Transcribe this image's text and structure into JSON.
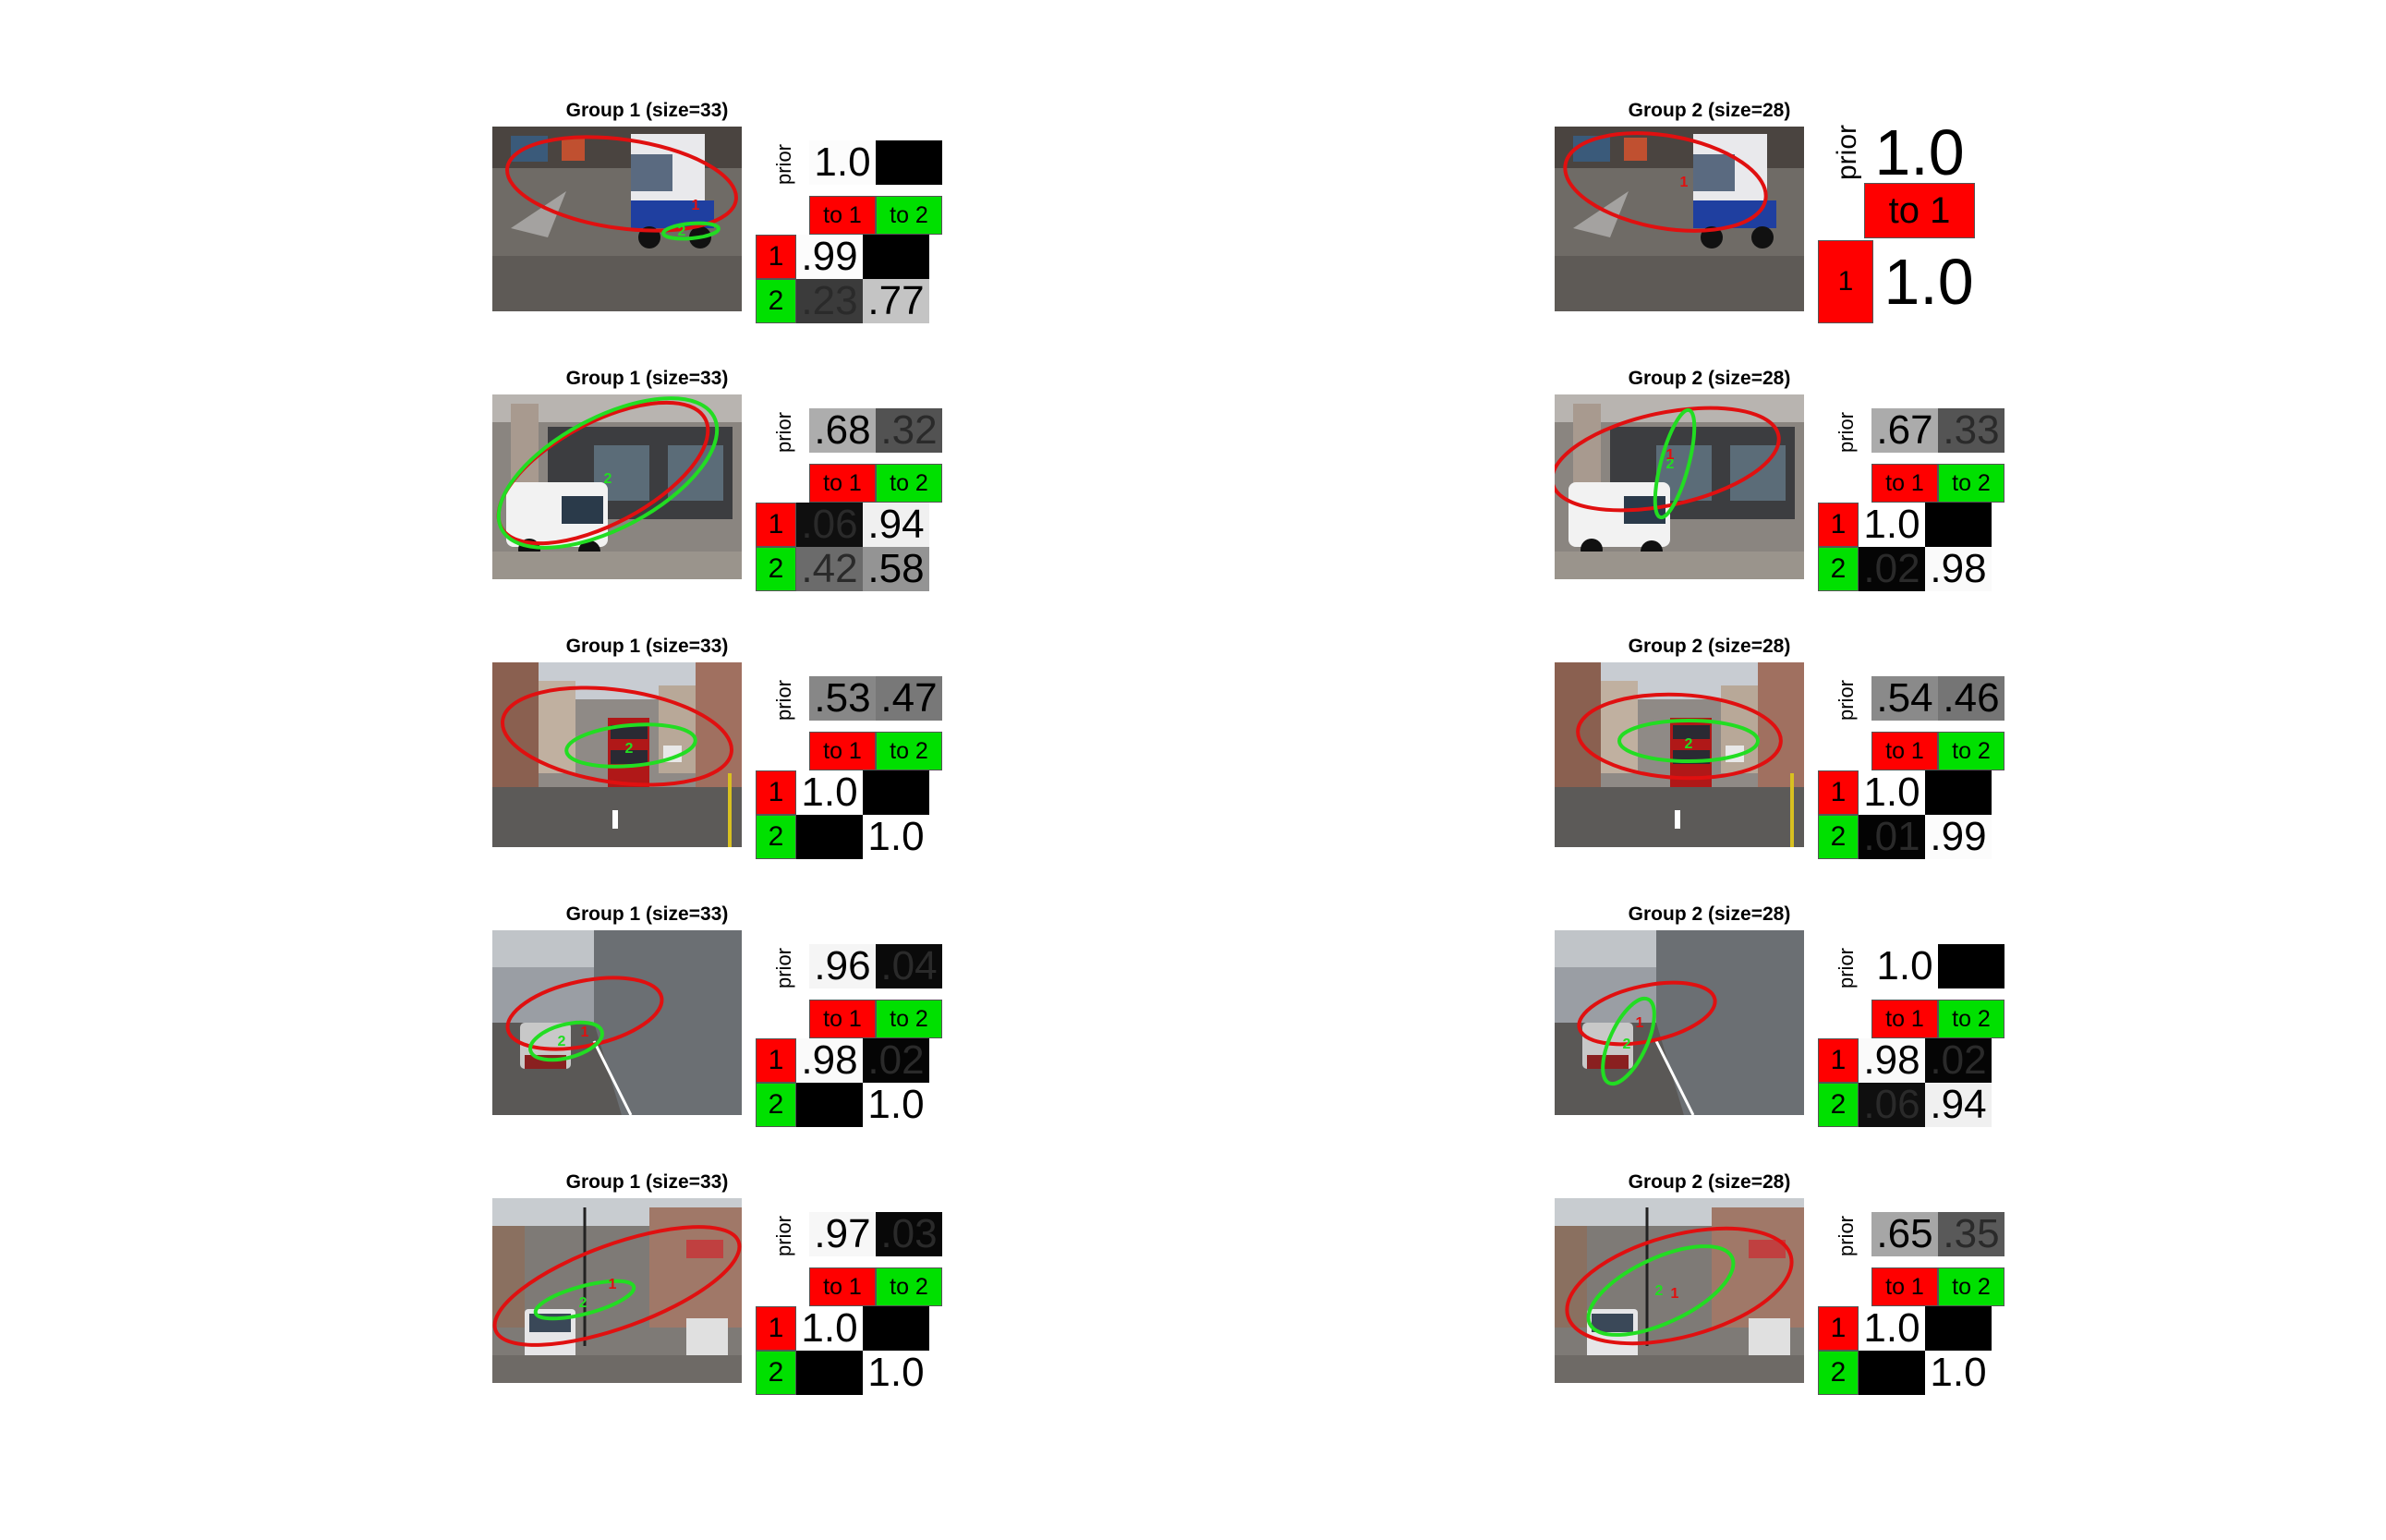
{
  "labels": {
    "prior": "prior",
    "to1": "to 1",
    "to2": "to 2",
    "row1": "1",
    "row2": "2"
  },
  "colors": {
    "red": "#ff0000",
    "green": "#00e000",
    "ellipse_red": "#e01010",
    "ellipse_green": "#22dd22"
  },
  "groups": [
    {
      "title": "Group 1 (size=33)",
      "panels": [
        {
          "scene": "truck-street",
          "prior": [
            ".99",
            ""
          ],
          "prior_shade": [
            0.99,
            0.0
          ],
          "prior_text": [
            "1.0",
            ""
          ],
          "rows": [
            [
              ".99",
              ""
            ],
            [
              ".23",
              ".77"
            ]
          ],
          "shades": [
            [
              0.99,
              0.0
            ],
            [
              0.23,
              0.77
            ]
          ]
        },
        {
          "scene": "white-van-shopfront",
          "prior_text": [
            ".68",
            ".32"
          ],
          "prior_shade": [
            0.68,
            0.32
          ],
          "rows": [
            [
              ".06",
              ".94"
            ],
            [
              ".42",
              ".58"
            ]
          ],
          "shades": [
            [
              0.06,
              0.94
            ],
            [
              0.42,
              0.58
            ]
          ]
        },
        {
          "scene": "red-bus",
          "prior_text": [
            ".53",
            ".47"
          ],
          "prior_shade": [
            0.53,
            0.47
          ],
          "rows": [
            [
              "1.0",
              ""
            ],
            [
              "",
              "1.0"
            ]
          ],
          "shades": [
            [
              1.0,
              0.0
            ],
            [
              0.0,
              1.0
            ]
          ]
        },
        {
          "scene": "tunnel-car",
          "prior_text": [
            ".96",
            ".04"
          ],
          "prior_shade": [
            0.96,
            0.04
          ],
          "rows": [
            [
              ".98",
              ".02"
            ],
            [
              "",
              "1.0"
            ]
          ],
          "shades": [
            [
              0.98,
              0.02
            ],
            [
              0.0,
              1.0
            ]
          ]
        },
        {
          "scene": "wide-street-van",
          "prior_text": [
            ".97",
            ".03"
          ],
          "prior_shade": [
            0.97,
            0.03
          ],
          "rows": [
            [
              "1.0",
              ""
            ],
            [
              "",
              "1.0"
            ]
          ],
          "shades": [
            [
              1.0,
              0.0
            ],
            [
              0.0,
              1.0
            ]
          ]
        }
      ]
    },
    {
      "title": "Group 2 (size=28)",
      "panels": [
        {
          "scene": "truck-street",
          "single": true,
          "prior_text": [
            "1.0"
          ],
          "prior_shade": [
            1.0
          ],
          "rows": [
            [
              "1.0"
            ]
          ],
          "shades": [
            [
              1.0
            ]
          ]
        },
        {
          "scene": "white-van-shopfront",
          "prior_text": [
            ".67",
            ".33"
          ],
          "prior_shade": [
            0.67,
            0.33
          ],
          "rows": [
            [
              "1.0",
              ""
            ],
            [
              ".02",
              ".98"
            ]
          ],
          "shades": [
            [
              1.0,
              0.0
            ],
            [
              0.02,
              0.98
            ]
          ]
        },
        {
          "scene": "red-bus",
          "prior_text": [
            ".54",
            ".46"
          ],
          "prior_shade": [
            0.54,
            0.46
          ],
          "rows": [
            [
              "1.0",
              ""
            ],
            [
              ".01",
              ".99"
            ]
          ],
          "shades": [
            [
              1.0,
              0.0
            ],
            [
              0.01,
              0.99
            ]
          ]
        },
        {
          "scene": "tunnel-car",
          "prior_text": [
            "1.0",
            ""
          ],
          "prior_shade": [
            1.0,
            0.0
          ],
          "rows": [
            [
              ".98",
              ".02"
            ],
            [
              ".06",
              ".94"
            ]
          ],
          "shades": [
            [
              0.98,
              0.02
            ],
            [
              0.06,
              0.94
            ]
          ]
        },
        {
          "scene": "wide-street-van",
          "prior_text": [
            ".65",
            ".35"
          ],
          "prior_shade": [
            0.65,
            0.35
          ],
          "rows": [
            [
              "1.0",
              ""
            ],
            [
              "",
              "1.0"
            ]
          ],
          "shades": [
            [
              1.0,
              0.0
            ],
            [
              0.0,
              1.0
            ]
          ]
        }
      ]
    }
  ]
}
